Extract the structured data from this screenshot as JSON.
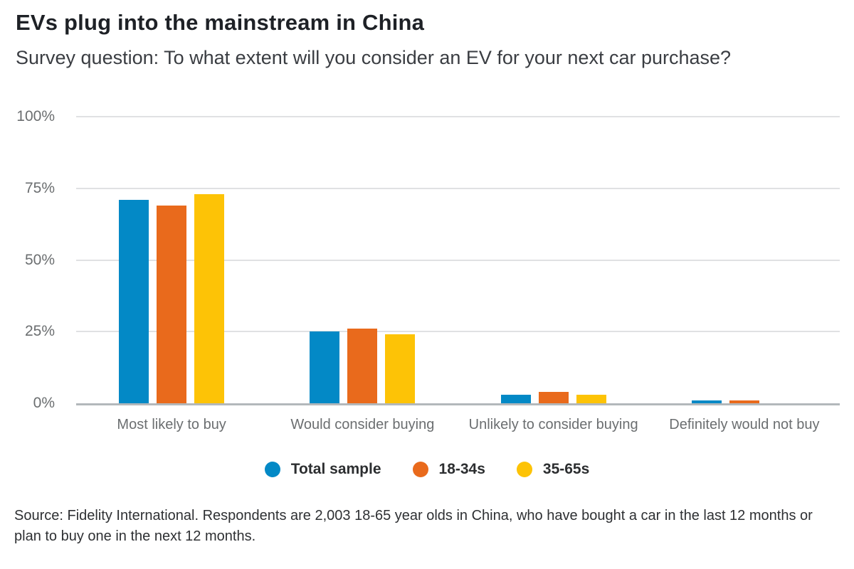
{
  "chart_data": {
    "type": "bar",
    "title": "EVs plug into the mainstream in China",
    "subtitle": "Survey question: To what extent will you consider an EV for your next car purchase?",
    "categories": [
      "Most likely to buy",
      "Would consider buying",
      "Unlikely to consider buying",
      "Definitely would not buy"
    ],
    "series": [
      {
        "name": "Total sample",
        "color": "#0389c6",
        "values": [
          71,
          25,
          3,
          1
        ]
      },
      {
        "name": "18-34s",
        "color": "#e96a1c",
        "values": [
          69,
          26,
          4,
          1
        ]
      },
      {
        "name": "35-65s",
        "color": "#fdc306",
        "values": [
          73,
          24,
          3,
          0
        ]
      }
    ],
    "unit": "%",
    "xlabel": "",
    "ylabel": "",
    "ylim": [
      0,
      100
    ],
    "yticks": [
      {
        "value": 0,
        "label": "0%"
      },
      {
        "value": 25,
        "label": "25%"
      },
      {
        "value": 50,
        "label": "50%"
      },
      {
        "value": 75,
        "label": "75%"
      },
      {
        "value": 100,
        "label": "100%"
      }
    ],
    "grid": true,
    "legend_position": "bottom",
    "colors": {
      "gridline": "#e0e1e3",
      "axisline": "#b3b8bb"
    }
  },
  "footer": {
    "source": "Source: Fidelity International. Respondents are 2,003 18-65 year olds in China, who have bought a car in the last 12 months or plan to buy one in the next 12 months."
  }
}
